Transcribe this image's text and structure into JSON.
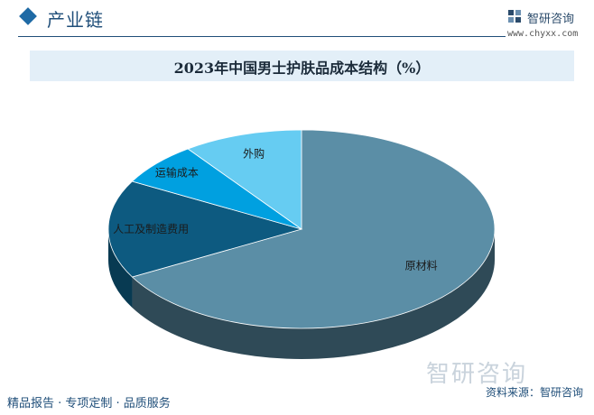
{
  "header": {
    "section_title": "产业链",
    "logo_name": "智研咨询",
    "logo_url": "www.chyxx.com"
  },
  "chart_data": {
    "type": "pie",
    "title": "2023年中国男士护肤品成本结构（%）",
    "slices": [
      {
        "label": "原材料",
        "value": 67,
        "color": "#5b8ea6",
        "side_color": "#2f4a57"
      },
      {
        "label": "人工及制造费用",
        "value": 16,
        "color": "#0d5a80",
        "side_color": "#083a52"
      },
      {
        "label": "运输成本",
        "value": 7,
        "color": "#00a0e0",
        "side_color": "#006b97"
      },
      {
        "label": "外购",
        "value": 10,
        "color": "#66ccf2",
        "side_color": "#3a9fc6"
      }
    ],
    "legend": "none"
  },
  "footer": {
    "left": "精品报告 · 专项定制 · 品质服务",
    "right": "资料来源：智研咨询",
    "watermark": "智研咨询"
  }
}
